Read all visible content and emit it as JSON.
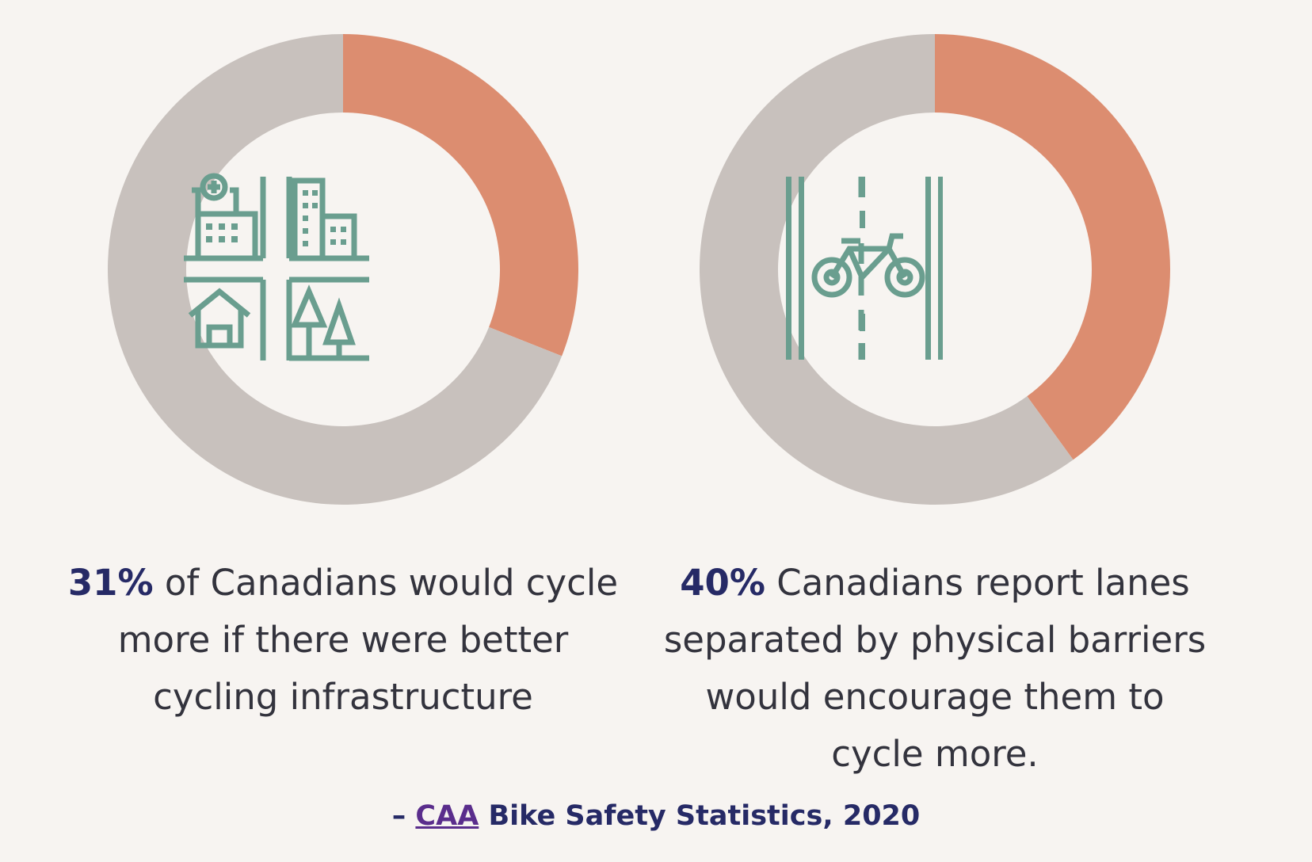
{
  "chart_data": [
    {
      "type": "pie",
      "values": [
        31,
        69
      ],
      "colors": [
        "#dc8d70",
        "#c8c1bd"
      ],
      "icon": "city-infrastructure-icon",
      "caption": {
        "highlight": "31%",
        "text": " of Canadians would cycle more if there were better cycling infrastructure"
      }
    },
    {
      "type": "pie",
      "values": [
        40,
        60
      ],
      "colors": [
        "#dc8d70",
        "#c8c1bd"
      ],
      "icon": "bike-lane-icon",
      "caption": {
        "highlight": "40%",
        "text": " Canadians report lanes separated by physical barriers would encourage them to cycle more."
      }
    }
  ],
  "source": {
    "prefix": "– ",
    "link_text": "CAA",
    "suffix": " Bike Safety Statistics, 2020"
  },
  "colors": {
    "icon": "#6a9e8f",
    "highlight": "#262a66",
    "link": "#5a2d8c"
  }
}
